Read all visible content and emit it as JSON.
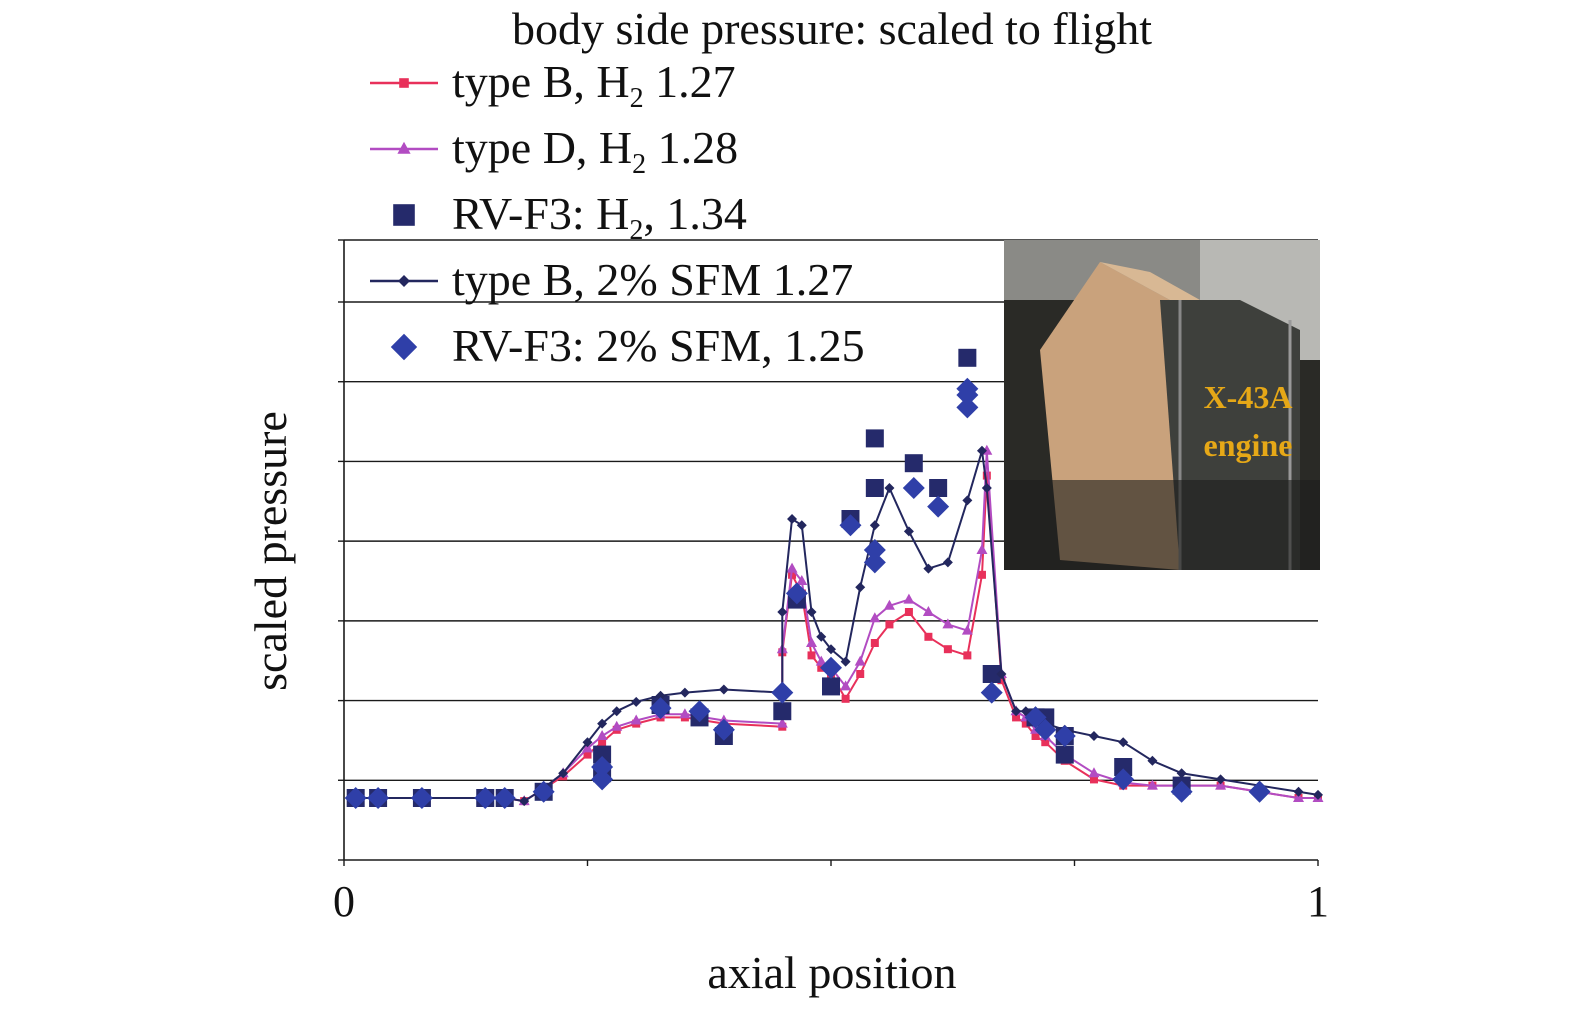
{
  "chart_data": {
    "type": "line",
    "title": "body side pressure: scaled to flight",
    "xlabel": "axial position",
    "ylabel": "scaled pressure",
    "xlim": [
      0,
      1
    ],
    "ylim": [
      0,
      1
    ],
    "x_tick_labels": [
      "0",
      "1"
    ],
    "x_ticks": [
      0,
      0.25,
      0.5,
      0.75,
      1
    ],
    "y_gridlines": [
      0,
      0.1286,
      0.2571,
      0.3857,
      0.5143,
      0.6429,
      0.7714,
      0.9,
      1.0
    ],
    "grid": true,
    "legend_position": "top-left",
    "colors": {
      "typeB_H2": "#e8305a",
      "typeD_H2": "#b24cc2",
      "RVF3_H2": "#252a6b",
      "typeB_SFM": "#23275e",
      "RVF3_SFM": "#2f3fa8"
    },
    "series": [
      {
        "key": "typeB_H2",
        "name": "type B, H",
        "name_sub": "2",
        "name_suffix": " 1.27",
        "style": "line-square",
        "points": [
          [
            0.012,
            0.1
          ],
          [
            0.035,
            0.1
          ],
          [
            0.08,
            0.1
          ],
          [
            0.145,
            0.1
          ],
          [
            0.165,
            0.1
          ],
          [
            0.185,
            0.095
          ],
          [
            0.2,
            0.11
          ],
          [
            0.225,
            0.135
          ],
          [
            0.25,
            0.17
          ],
          [
            0.265,
            0.19
          ],
          [
            0.28,
            0.21
          ],
          [
            0.3,
            0.22
          ],
          [
            0.325,
            0.23
          ],
          [
            0.35,
            0.23
          ],
          [
            0.39,
            0.22
          ],
          [
            0.45,
            0.215
          ],
          [
            0.45,
            0.335
          ],
          [
            0.46,
            0.46
          ],
          [
            0.47,
            0.43
          ],
          [
            0.48,
            0.33
          ],
          [
            0.49,
            0.31
          ],
          [
            0.5,
            0.3
          ],
          [
            0.515,
            0.26
          ],
          [
            0.53,
            0.3
          ],
          [
            0.545,
            0.35
          ],
          [
            0.56,
            0.38
          ],
          [
            0.58,
            0.4
          ],
          [
            0.6,
            0.36
          ],
          [
            0.62,
            0.34
          ],
          [
            0.64,
            0.33
          ],
          [
            0.655,
            0.46
          ],
          [
            0.66,
            0.62
          ],
          [
            0.675,
            0.29
          ],
          [
            0.69,
            0.23
          ],
          [
            0.7,
            0.22
          ],
          [
            0.71,
            0.2
          ],
          [
            0.72,
            0.19
          ],
          [
            0.74,
            0.16
          ],
          [
            0.77,
            0.13
          ],
          [
            0.8,
            0.12
          ],
          [
            0.83,
            0.12
          ],
          [
            0.86,
            0.12
          ],
          [
            0.9,
            0.12
          ],
          [
            0.94,
            0.11
          ],
          [
            0.98,
            0.1
          ],
          [
            1.0,
            0.1
          ]
        ]
      },
      {
        "key": "typeD_H2",
        "name": "type D, H",
        "name_sub": "2",
        "name_suffix": " 1.28",
        "style": "line-triangle",
        "points": [
          [
            0.012,
            0.1
          ],
          [
            0.035,
            0.1
          ],
          [
            0.08,
            0.1
          ],
          [
            0.145,
            0.1
          ],
          [
            0.165,
            0.1
          ],
          [
            0.185,
            0.095
          ],
          [
            0.2,
            0.11
          ],
          [
            0.225,
            0.14
          ],
          [
            0.25,
            0.18
          ],
          [
            0.265,
            0.2
          ],
          [
            0.28,
            0.215
          ],
          [
            0.3,
            0.225
          ],
          [
            0.325,
            0.235
          ],
          [
            0.35,
            0.235
          ],
          [
            0.39,
            0.225
          ],
          [
            0.45,
            0.22
          ],
          [
            0.45,
            0.34
          ],
          [
            0.46,
            0.47
          ],
          [
            0.47,
            0.45
          ],
          [
            0.48,
            0.35
          ],
          [
            0.49,
            0.32
          ],
          [
            0.5,
            0.31
          ],
          [
            0.515,
            0.28
          ],
          [
            0.53,
            0.32
          ],
          [
            0.545,
            0.39
          ],
          [
            0.56,
            0.41
          ],
          [
            0.58,
            0.42
          ],
          [
            0.6,
            0.4
          ],
          [
            0.62,
            0.38
          ],
          [
            0.64,
            0.37
          ],
          [
            0.655,
            0.5
          ],
          [
            0.66,
            0.66
          ],
          [
            0.675,
            0.3
          ],
          [
            0.69,
            0.24
          ],
          [
            0.7,
            0.23
          ],
          [
            0.71,
            0.21
          ],
          [
            0.72,
            0.2
          ],
          [
            0.74,
            0.17
          ],
          [
            0.77,
            0.14
          ],
          [
            0.8,
            0.125
          ],
          [
            0.83,
            0.12
          ],
          [
            0.86,
            0.12
          ],
          [
            0.9,
            0.12
          ],
          [
            0.94,
            0.11
          ],
          [
            0.98,
            0.1
          ],
          [
            1.0,
            0.1
          ]
        ]
      },
      {
        "key": "RVF3_H2",
        "name": "RV-F3: H",
        "name_sub": "2",
        "name_suffix": ", 1.34",
        "style": "square",
        "points": [
          [
            0.012,
            0.1
          ],
          [
            0.035,
            0.1
          ],
          [
            0.08,
            0.1
          ],
          [
            0.145,
            0.1
          ],
          [
            0.165,
            0.1
          ],
          [
            0.205,
            0.11
          ],
          [
            0.265,
            0.14
          ],
          [
            0.265,
            0.17
          ],
          [
            0.325,
            0.25
          ],
          [
            0.365,
            0.23
          ],
          [
            0.39,
            0.2
          ],
          [
            0.45,
            0.24
          ],
          [
            0.465,
            0.42
          ],
          [
            0.5,
            0.28
          ],
          [
            0.52,
            0.55
          ],
          [
            0.545,
            0.6
          ],
          [
            0.545,
            0.68
          ],
          [
            0.585,
            0.64
          ],
          [
            0.61,
            0.6
          ],
          [
            0.64,
            0.81
          ],
          [
            0.665,
            0.3
          ],
          [
            0.71,
            0.23
          ],
          [
            0.72,
            0.23
          ],
          [
            0.74,
            0.2
          ],
          [
            0.74,
            0.17
          ],
          [
            0.8,
            0.15
          ],
          [
            0.86,
            0.12
          ]
        ]
      },
      {
        "key": "typeB_SFM",
        "name": "type B, 2% SFM 1.27",
        "name_sub": "",
        "name_suffix": "",
        "style": "line-small-diamond",
        "points": [
          [
            0.012,
            0.1
          ],
          [
            0.035,
            0.1
          ],
          [
            0.08,
            0.1
          ],
          [
            0.145,
            0.1
          ],
          [
            0.165,
            0.1
          ],
          [
            0.185,
            0.095
          ],
          [
            0.2,
            0.11
          ],
          [
            0.225,
            0.14
          ],
          [
            0.25,
            0.19
          ],
          [
            0.265,
            0.22
          ],
          [
            0.28,
            0.24
          ],
          [
            0.3,
            0.255
          ],
          [
            0.325,
            0.265
          ],
          [
            0.35,
            0.27
          ],
          [
            0.39,
            0.275
          ],
          [
            0.45,
            0.27
          ],
          [
            0.45,
            0.4
          ],
          [
            0.46,
            0.55
          ],
          [
            0.47,
            0.54
          ],
          [
            0.48,
            0.4
          ],
          [
            0.49,
            0.36
          ],
          [
            0.5,
            0.34
          ],
          [
            0.515,
            0.32
          ],
          [
            0.53,
            0.44
          ],
          [
            0.545,
            0.54
          ],
          [
            0.56,
            0.6
          ],
          [
            0.58,
            0.53
          ],
          [
            0.6,
            0.47
          ],
          [
            0.62,
            0.48
          ],
          [
            0.64,
            0.58
          ],
          [
            0.655,
            0.66
          ],
          [
            0.66,
            0.6
          ],
          [
            0.675,
            0.3
          ],
          [
            0.69,
            0.24
          ],
          [
            0.7,
            0.24
          ],
          [
            0.71,
            0.24
          ],
          [
            0.72,
            0.22
          ],
          [
            0.74,
            0.21
          ],
          [
            0.77,
            0.2
          ],
          [
            0.8,
            0.19
          ],
          [
            0.83,
            0.16
          ],
          [
            0.86,
            0.14
          ],
          [
            0.9,
            0.13
          ],
          [
            0.94,
            0.12
          ],
          [
            0.98,
            0.11
          ],
          [
            1.0,
            0.105
          ]
        ]
      },
      {
        "key": "RVF3_SFM",
        "name": "RV-F3: 2% SFM, 1.25",
        "name_sub": "",
        "name_suffix": "",
        "style": "diamond",
        "points": [
          [
            0.012,
            0.1
          ],
          [
            0.035,
            0.1
          ],
          [
            0.08,
            0.1
          ],
          [
            0.145,
            0.1
          ],
          [
            0.165,
            0.1
          ],
          [
            0.205,
            0.11
          ],
          [
            0.265,
            0.13
          ],
          [
            0.265,
            0.15
          ],
          [
            0.325,
            0.245
          ],
          [
            0.365,
            0.24
          ],
          [
            0.39,
            0.21
          ],
          [
            0.45,
            0.27
          ],
          [
            0.465,
            0.43
          ],
          [
            0.5,
            0.31
          ],
          [
            0.52,
            0.54
          ],
          [
            0.545,
            0.48
          ],
          [
            0.545,
            0.5
          ],
          [
            0.585,
            0.6
          ],
          [
            0.61,
            0.57
          ],
          [
            0.64,
            0.73
          ],
          [
            0.64,
            0.75
          ],
          [
            0.64,
            0.76
          ],
          [
            0.665,
            0.27
          ],
          [
            0.71,
            0.23
          ],
          [
            0.72,
            0.21
          ],
          [
            0.74,
            0.2
          ],
          [
            0.8,
            0.13
          ],
          [
            0.86,
            0.11
          ],
          [
            0.94,
            0.11
          ]
        ]
      }
    ]
  },
  "inset": {
    "label_line1": "X-43A",
    "label_line2": "engine"
  }
}
